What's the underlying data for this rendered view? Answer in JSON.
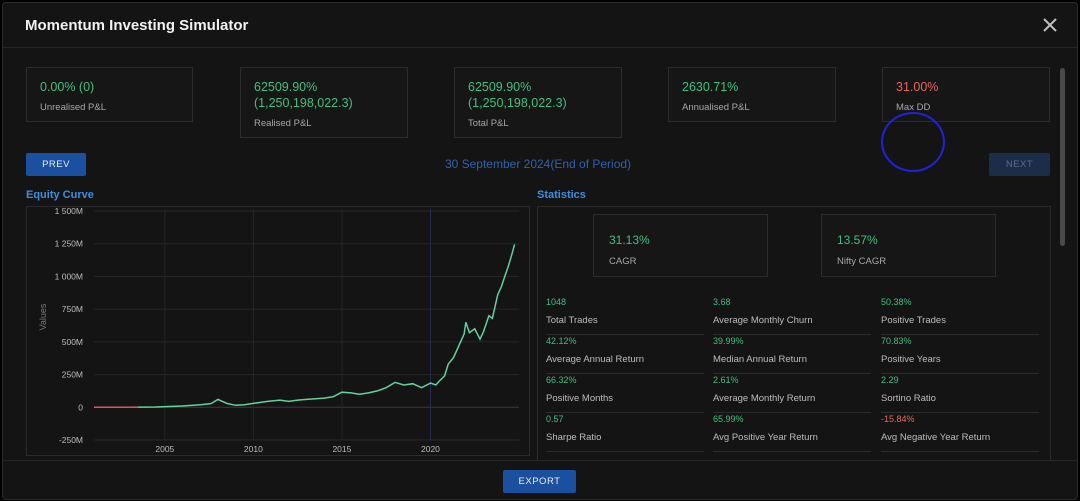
{
  "header": {
    "title": "Momentum Investing Simulator",
    "close_icon": "close-icon"
  },
  "summary": {
    "unrealised": {
      "value": "0.00% (0)",
      "label": "Unrealised P&L"
    },
    "realised": {
      "value_line1": "62509.90%",
      "value_line2": "(1,250,198,022.3)",
      "label": "Realised P&L"
    },
    "total": {
      "value_line1": "62509.90%",
      "value_line2": "(1,250,198,022.3)",
      "label": "Total P&L"
    },
    "annualised": {
      "value": "2630.71%",
      "label": "Annualised P&L"
    },
    "max_dd": {
      "value": "31.00%",
      "label": "Max DD"
    }
  },
  "nav": {
    "prev_label": "PREV",
    "next_label": "NEXT",
    "period": "30 September 2024(End of Period)"
  },
  "equity": {
    "title": "Equity Curve"
  },
  "chart_data": {
    "type": "line",
    "ylabel": "Values",
    "ylim": [
      -250,
      1500
    ],
    "yticks": [
      -250,
      0,
      250,
      500,
      750,
      1000,
      1250,
      1500
    ],
    "ytick_labels": [
      "-250M",
      "0",
      "250M",
      "500M",
      "750M",
      "1 000M",
      "1 250M",
      "1 500M"
    ],
    "xlim": [
      2001.0,
      2025.0
    ],
    "xticks": [
      2005,
      2010,
      2015,
      2020
    ],
    "xtick_labels": [
      "2005",
      "2010",
      "2015",
      "2020"
    ],
    "highlight_line_x": 2020.0,
    "grid": true,
    "series": [
      {
        "color": "#5fd39a",
        "x": [
          2001.0,
          2003.0,
          2004.5,
          2006.0,
          2007.0,
          2007.6,
          2008.0,
          2008.5,
          2009.0,
          2009.5,
          2010.0,
          2010.8,
          2011.5,
          2012.0,
          2012.5,
          2013.0,
          2013.5,
          2014.0,
          2014.5,
          2015.0,
          2015.5,
          2016.0,
          2016.5,
          2017.0,
          2017.5,
          2018.0,
          2018.5,
          2019.0,
          2019.5,
          2020.0,
          2020.3,
          2020.5,
          2020.8,
          2021.0,
          2021.3,
          2021.6,
          2021.9,
          2022.0,
          2022.2,
          2022.5,
          2022.8,
          2023.0,
          2023.3,
          2023.5,
          2023.8,
          2024.0,
          2024.2,
          2024.4,
          2024.6,
          2024.75
        ],
        "values": [
          0,
          0,
          2,
          10,
          20,
          28,
          60,
          30,
          15,
          20,
          30,
          45,
          55,
          45,
          55,
          60,
          65,
          70,
          80,
          115,
          110,
          100,
          110,
          125,
          150,
          190,
          170,
          180,
          150,
          185,
          170,
          200,
          240,
          330,
          380,
          470,
          560,
          650,
          570,
          600,
          520,
          580,
          700,
          680,
          860,
          920,
          1000,
          1080,
          1170,
          1245
        ]
      }
    ],
    "early_segment": {
      "color": "#e2535a",
      "x": [
        2001.0,
        2003.5
      ],
      "values": [
        0,
        0
      ]
    }
  },
  "statistics": {
    "title": "Statistics",
    "cagr": {
      "value": "31.13%",
      "label": "CAGR"
    },
    "nifty_cagr": {
      "value": "13.57%",
      "label": "Nifty CAGR"
    },
    "items": [
      {
        "value": "1048",
        "label": "Total Trades"
      },
      {
        "value": "3.68",
        "label": "Average Monthly Churn"
      },
      {
        "value": "50.38%",
        "label": "Positive Trades"
      },
      {
        "value": "42.12%",
        "label": "Average Annual Return"
      },
      {
        "value": "39.99%",
        "label": "Median Annual Return"
      },
      {
        "value": "70.83%",
        "label": "Positive Years"
      },
      {
        "value": "66.32%",
        "label": "Positive Months"
      },
      {
        "value": "2.61%",
        "label": "Average Monthly Return"
      },
      {
        "value": "2.29",
        "label": "Sortino Ratio"
      },
      {
        "value": "0.57",
        "label": "Sharpe Ratio"
      },
      {
        "value": "65.99%",
        "label": "Avg Positive Year Return"
      },
      {
        "value": "-15.84%",
        "label": "Avg Negative Year Return",
        "negative": true
      }
    ]
  },
  "footer": {
    "export_label": "EXPORT"
  }
}
